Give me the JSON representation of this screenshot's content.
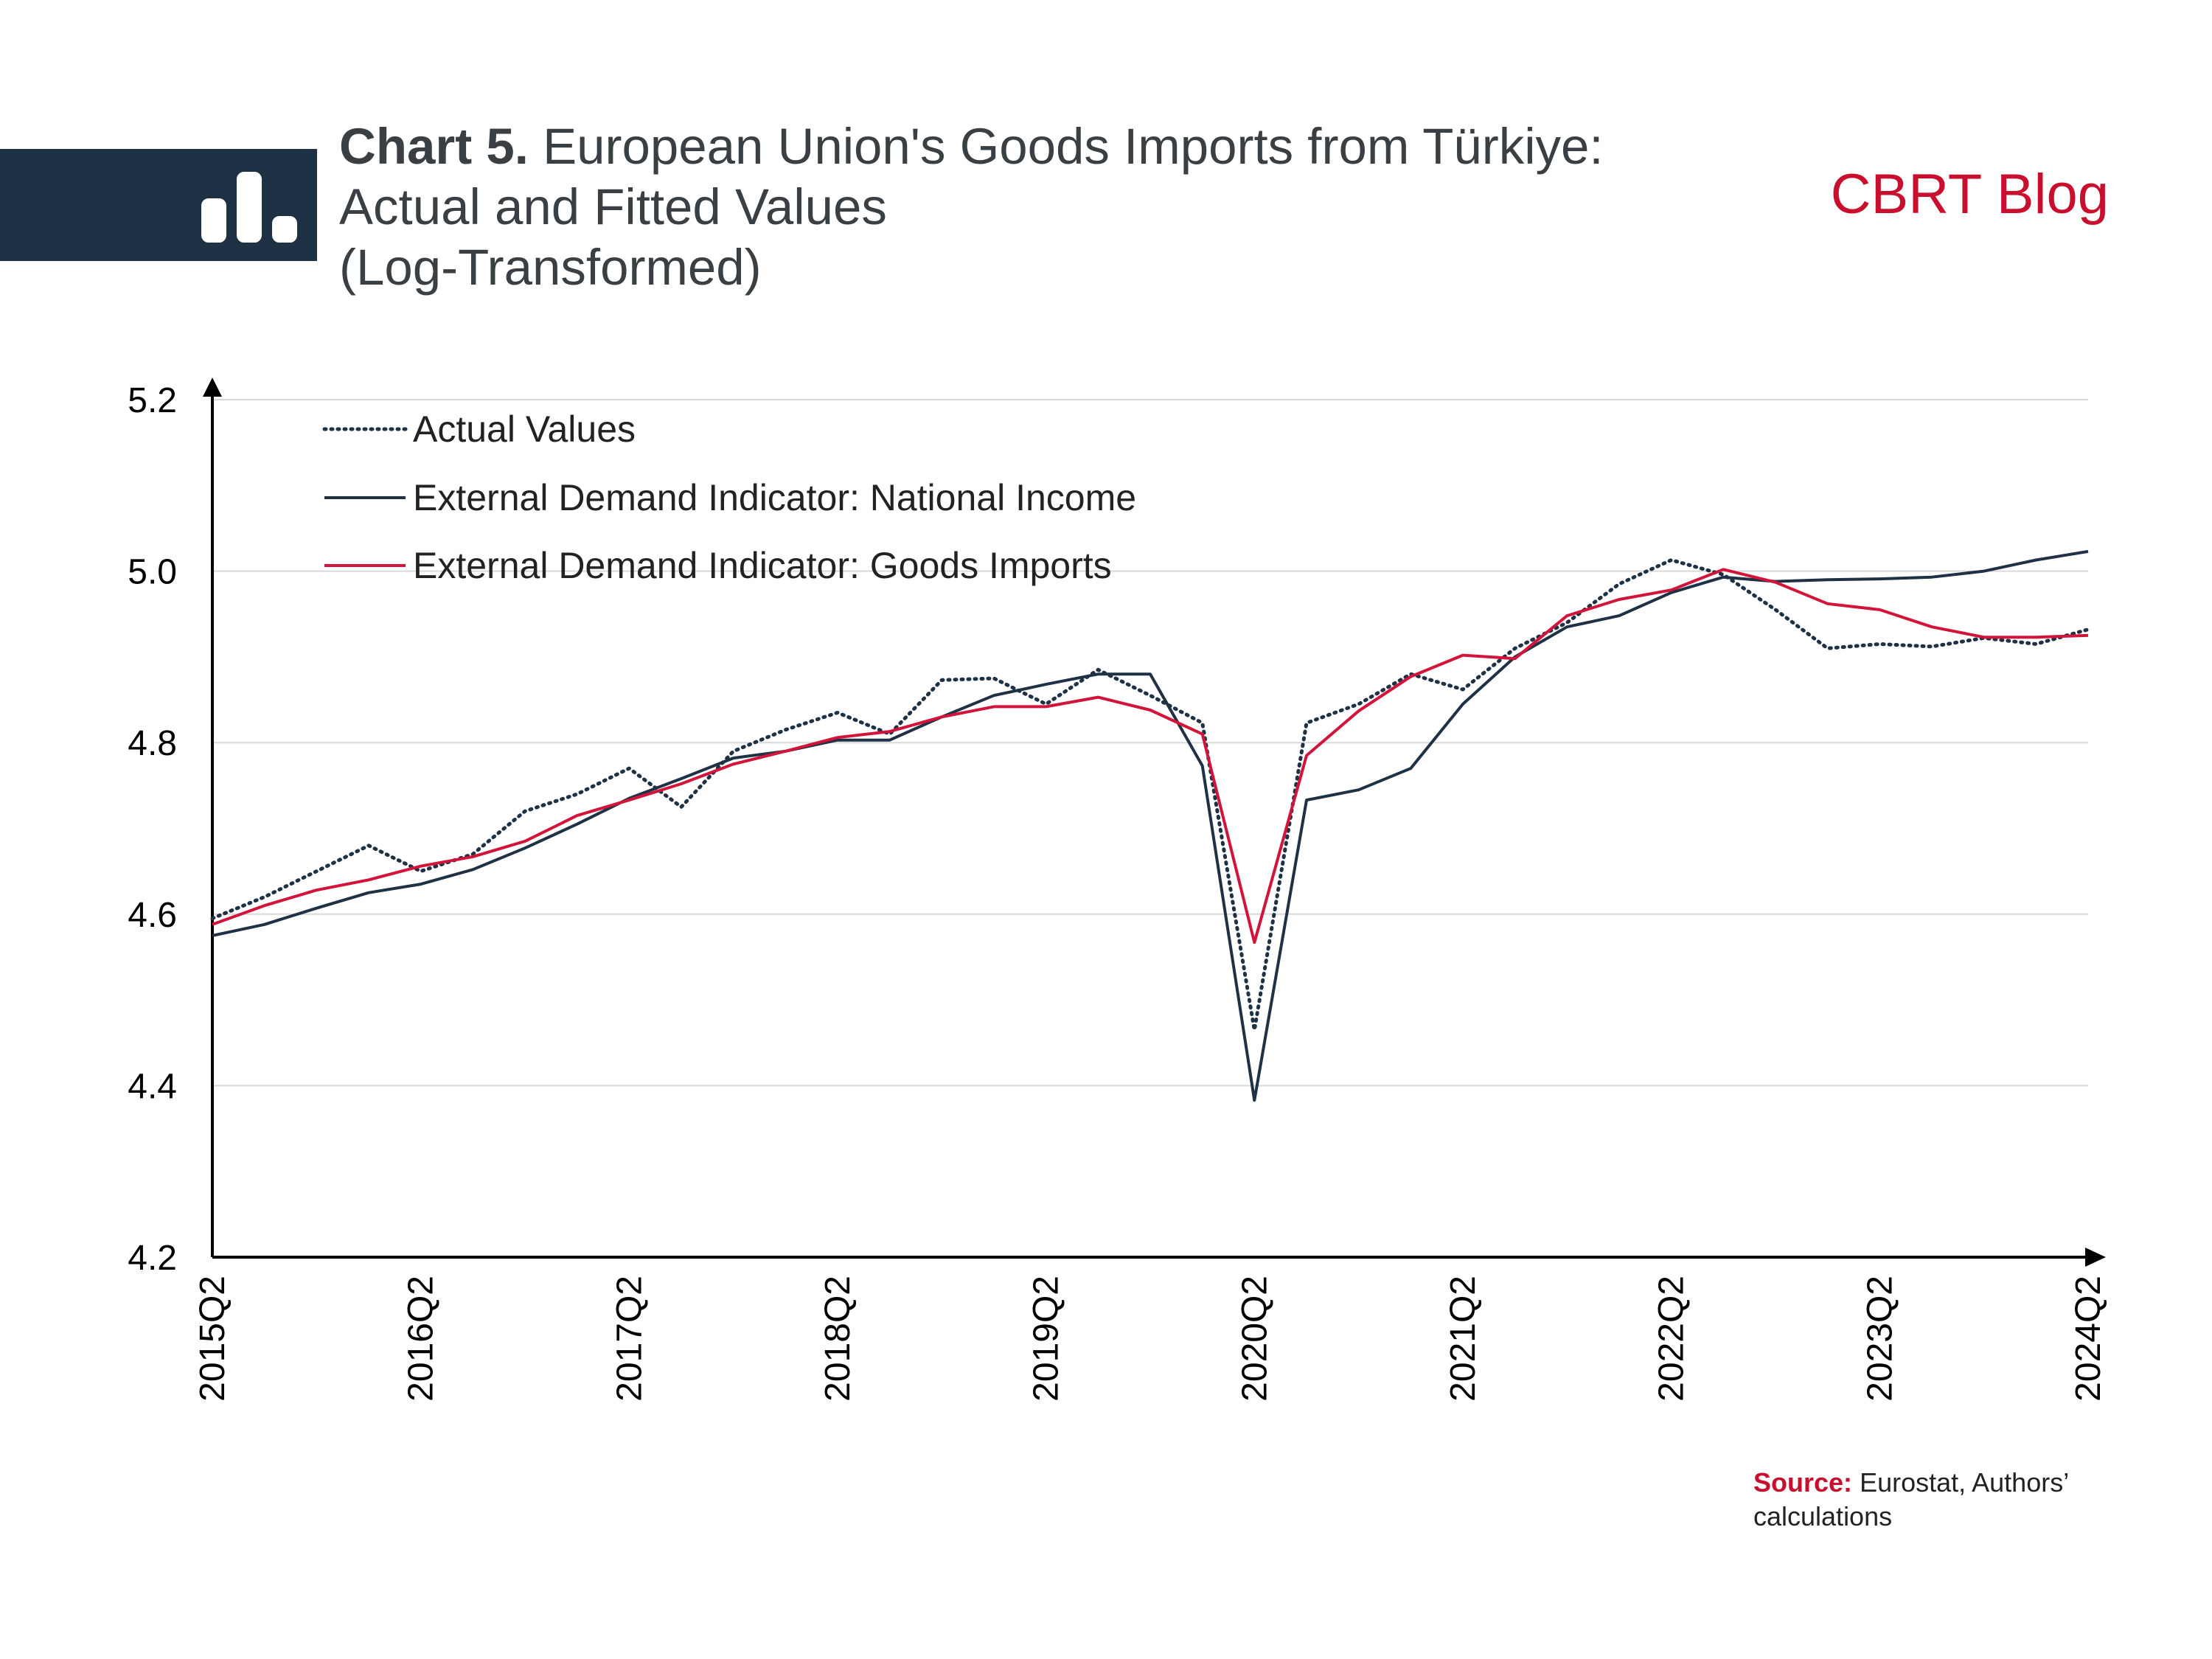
{
  "header": {
    "chart_label": "Chart 5.",
    "title_line1": "European Union's Goods Imports from Türkiye:",
    "title_line2": "Actual and Fitted Values",
    "title_line3": "(Log-Transformed)",
    "brand": "CBRT Blog",
    "icon": "bar-chart-icon"
  },
  "source": {
    "label": "Source:",
    "text": "Eurostat, Authors’ calculations"
  },
  "colors": {
    "navy": "#1f3144",
    "red": "#d2143a",
    "brand": "#c8102e",
    "grid": "#d9d9d9",
    "axis": "#000000"
  },
  "chart_data": {
    "type": "line",
    "title": "European Union's Goods Imports from Türkiye: Actual and Fitted Values (Log-Transformed)",
    "xlabel": "",
    "ylabel": "",
    "ylim": [
      4.2,
      5.2
    ],
    "yticks": [
      "4.2",
      "4.4",
      "4.6",
      "4.8",
      "5.0",
      "5.2"
    ],
    "grid": true,
    "legend_position": "top-left",
    "x": [
      "2015Q2",
      "2015Q3",
      "2015Q4",
      "2016Q1",
      "2016Q2",
      "2016Q3",
      "2016Q4",
      "2017Q1",
      "2017Q2",
      "2017Q3",
      "2017Q4",
      "2018Q1",
      "2018Q2",
      "2018Q3",
      "2018Q4",
      "2019Q1",
      "2019Q2",
      "2019Q3",
      "2019Q4",
      "2020Q1",
      "2020Q2",
      "2020Q3",
      "2020Q4",
      "2021Q1",
      "2021Q2",
      "2021Q3",
      "2021Q4",
      "2022Q1",
      "2022Q2",
      "2022Q3",
      "2022Q4",
      "2023Q1",
      "2023Q2",
      "2023Q3",
      "2023Q4",
      "2024Q1",
      "2024Q2"
    ],
    "xtick_labels": [
      "2015Q2",
      "2016Q2",
      "2017Q2",
      "2018Q2",
      "2019Q2",
      "2020Q2",
      "2021Q2",
      "2022Q2",
      "2023Q2",
      "2024Q2"
    ],
    "series": [
      {
        "name": "Actual Values",
        "style": "dotted",
        "color": "#1f3144",
        "values": [
          4.595,
          4.62,
          4.65,
          4.68,
          4.65,
          4.67,
          4.72,
          4.74,
          4.77,
          4.725,
          4.79,
          4.815,
          4.835,
          4.81,
          4.873,
          4.875,
          4.845,
          4.885,
          4.855,
          4.823,
          4.465,
          4.823,
          4.845,
          4.88,
          4.862,
          4.91,
          4.94,
          4.985,
          5.013,
          4.996,
          4.955,
          4.91,
          4.915,
          4.912,
          4.922,
          4.915,
          4.932
        ]
      },
      {
        "name": "External Demand Indicator: National Income",
        "style": "solid",
        "color": "#1f3144",
        "values": [
          4.575,
          4.588,
          4.607,
          4.625,
          4.635,
          4.652,
          4.677,
          4.705,
          4.735,
          4.758,
          4.782,
          4.79,
          4.803,
          4.803,
          4.83,
          4.855,
          4.868,
          4.88,
          4.88,
          4.773,
          4.383,
          4.733,
          4.745,
          4.77,
          4.845,
          4.9,
          4.935,
          4.948,
          4.975,
          4.993,
          4.988,
          4.99,
          4.991,
          4.993,
          5.0,
          5.013,
          5.023
        ]
      },
      {
        "name": "External Demand Indicator: Goods Imports",
        "style": "solid",
        "color": "#d2143a",
        "values": [
          4.588,
          4.61,
          4.628,
          4.64,
          4.656,
          4.667,
          4.685,
          4.715,
          4.733,
          4.752,
          4.775,
          4.79,
          4.806,
          4.813,
          4.83,
          4.842,
          4.842,
          4.853,
          4.838,
          4.81,
          4.567,
          4.785,
          4.837,
          4.877,
          4.902,
          4.898,
          4.948,
          4.967,
          4.978,
          5.002,
          4.987,
          4.962,
          4.955,
          4.935,
          4.923,
          4.923,
          4.925
        ]
      }
    ]
  }
}
